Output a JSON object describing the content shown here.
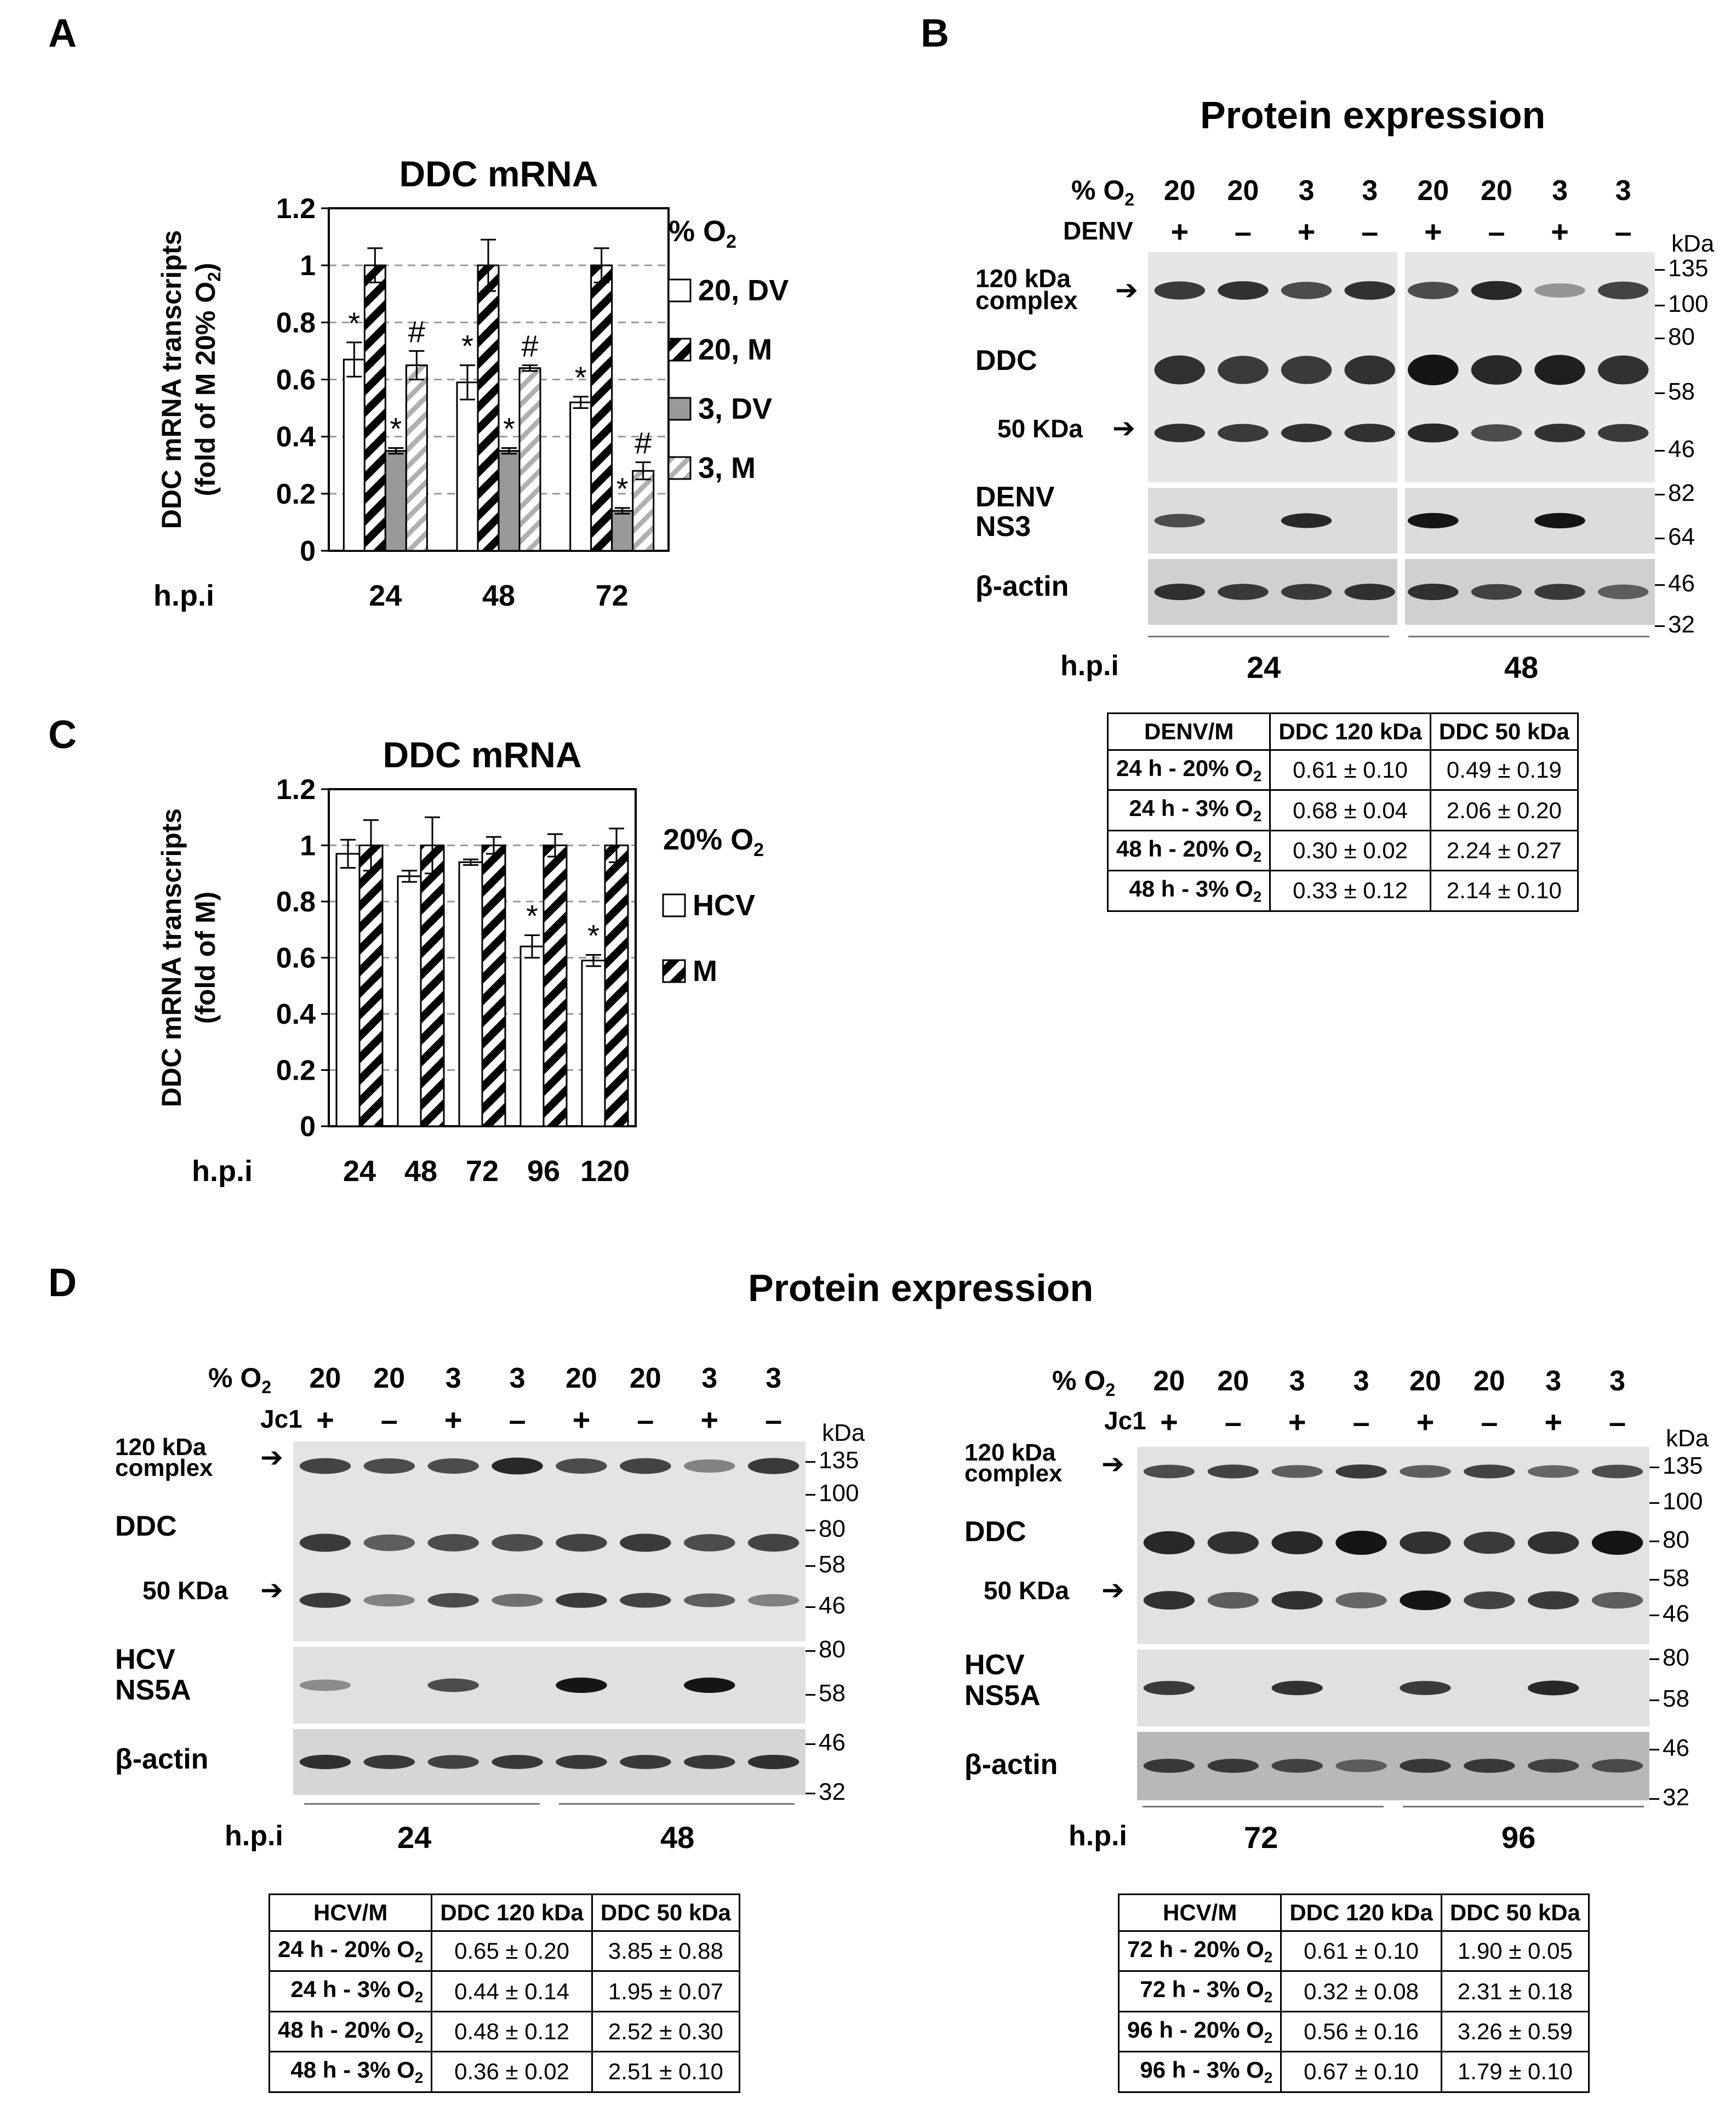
{
  "panels": {
    "a": "A",
    "b": "B",
    "c": "C",
    "d": "D"
  },
  "panelA": {
    "title": "DDC mRNA",
    "ylabel1": "DDC mRNA transcripts",
    "ylabel2": "(fold of M 20% O",
    "ylabel2sub": "2",
    "ylabel2end": ")",
    "legend_title": "% O",
    "legend_title_sub": "2",
    "legend": [
      "20, DV",
      "20, M",
      "3, DV",
      "3, M"
    ],
    "xaxis_label": "h.p.i"
  },
  "panelC": {
    "title": "DDC mRNA",
    "ylabel1": "DDC mRNA transcripts",
    "ylabel2": "(fold of M)",
    "legend_title": "20% O",
    "legend_title_sub": "2",
    "legend": [
      "HCV",
      "M"
    ],
    "xaxis_label": "h.p.i"
  },
  "chart_data": [
    {
      "type": "bar",
      "title": "DDC mRNA",
      "ylabel": "DDC mRNA transcripts (fold of M 20% O2)",
      "xlabel": "h.p.i",
      "categories": [
        "24",
        "48",
        "72"
      ],
      "ylim": [
        0,
        1.2
      ],
      "yticks": [
        "0",
        "0.2",
        "0.4",
        "0.6",
        "0.8",
        "1",
        "1.2"
      ],
      "grid": "dashed horizontal",
      "series": [
        {
          "name": "20, DV",
          "values": [
            0.67,
            0.59,
            0.52
          ],
          "errors": [
            0.06,
            0.06,
            0.02
          ],
          "marks": [
            "*",
            "*",
            "*"
          ]
        },
        {
          "name": "20, M",
          "values": [
            1.0,
            1.0,
            1.0
          ],
          "errors": [
            0.06,
            0.09,
            0.06
          ],
          "marks": [
            "",
            "",
            ""
          ]
        },
        {
          "name": "3, DV",
          "values": [
            0.35,
            0.35,
            0.14
          ],
          "errors": [
            0.01,
            0.01,
            0.01
          ],
          "marks": [
            "*",
            "*",
            "*"
          ]
        },
        {
          "name": "3, M",
          "values": [
            0.65,
            0.64,
            0.28
          ],
          "errors": [
            0.05,
            0.01,
            0.03
          ],
          "marks": [
            "#",
            "#",
            "#"
          ]
        }
      ],
      "legend_placement": "right"
    },
    {
      "type": "bar",
      "title": "DDC mRNA",
      "ylabel": "DDC mRNA transcripts (fold of M)",
      "xlabel": "h.p.i",
      "categories": [
        "24",
        "48",
        "72",
        "96",
        "120"
      ],
      "ylim": [
        0,
        1.2
      ],
      "yticks": [
        "0",
        "0.2",
        "0.4",
        "0.6",
        "0.8",
        "1",
        "1.2"
      ],
      "grid": "dashed horizontal",
      "series": [
        {
          "name": "HCV",
          "values": [
            0.97,
            0.89,
            0.94,
            0.64,
            0.59
          ],
          "errors": [
            0.05,
            0.02,
            0.01,
            0.04,
            0.02
          ],
          "marks": [
            "",
            "",
            "",
            "*",
            "*"
          ]
        },
        {
          "name": "M",
          "values": [
            1.0,
            1.0,
            1.0,
            1.0,
            1.0
          ],
          "errors": [
            0.09,
            0.1,
            0.03,
            0.04,
            0.06
          ],
          "marks": [
            "",
            "",
            "",
            "",
            ""
          ]
        }
      ],
      "legend_placement": "right"
    }
  ],
  "panelB": {
    "title": "Protein expression",
    "o2_label": "% O",
    "o2_sub": "2",
    "o2_values": [
      "20",
      "20",
      "3",
      "3",
      "20",
      "20",
      "3",
      "3"
    ],
    "virus_label": "DENV",
    "virus_signs": [
      "+",
      "–",
      "+",
      "–",
      "+",
      "–",
      "+",
      "–"
    ],
    "kda": "kDa",
    "complex_label1": "120 kDa",
    "complex_label2": "complex",
    "ddc_label": "DDC",
    "kda50_label": "50 KDa",
    "ns_label1": "DENV",
    "ns_label2": "NS3",
    "actin_label": "β-actin",
    "mw_top": [
      "135",
      "100",
      "80",
      "58",
      "46"
    ],
    "mw_mid": [
      "82",
      "64"
    ],
    "mw_bot": [
      "46",
      "32"
    ],
    "hpi_label": "h.p.i",
    "times": [
      "24",
      "48"
    ],
    "table": {
      "headers": [
        "DENV/M",
        "DDC 120 kDa",
        "DDC 50 kDa"
      ],
      "rows": [
        {
          "label": "24 h - 20% O",
          "sub": "2",
          "c1": "0.61 ± 0.10",
          "c2": "0.49 ± 0.19"
        },
        {
          "label": "24 h - 3% O",
          "sub": "2",
          "c1": "0.68 ± 0.04",
          "c2": "2.06 ± 0.20"
        },
        {
          "label": "48 h - 20% O",
          "sub": "2",
          "c1": "0.30 ± 0.02",
          "c2": "2.24 ± 0.27"
        },
        {
          "label": "48 h - 3% O",
          "sub": "2",
          "c1": "0.33 ± 0.12",
          "c2": "2.14 ± 0.10"
        }
      ]
    }
  },
  "panelD": {
    "title": "Protein expression",
    "o2_label": "% O",
    "o2_sub": "2",
    "o2_values": [
      "20",
      "20",
      "3",
      "3",
      "20",
      "20",
      "3",
      "3"
    ],
    "virus_label": "Jc1",
    "virus_signs": [
      "+",
      "–",
      "+",
      "–",
      "+",
      "–",
      "+",
      "–"
    ],
    "kda": "kDa",
    "complex_label1": "120 kDa",
    "complex_label2": "complex",
    "ddc_label": "DDC",
    "kda50_label": "50 KDa",
    "ns_label1": "HCV",
    "ns_label2": "NS5A",
    "actin_label": "β-actin",
    "mw_top": [
      "135",
      "100",
      "80",
      "58",
      "46"
    ],
    "mw_mid": [
      "80",
      "58"
    ],
    "mw_bot": [
      "46",
      "32"
    ],
    "hpi_label": "h.p.i",
    "left_times": [
      "24",
      "48"
    ],
    "right_times": [
      "72",
      "96"
    ],
    "left_table": {
      "headers": [
        "HCV/M",
        "DDC 120 kDa",
        "DDC 50 kDa"
      ],
      "rows": [
        {
          "label": "24 h - 20% O",
          "sub": "2",
          "c1": "0.65 ± 0.20",
          "c2": "3.85 ± 0.88"
        },
        {
          "label": "24 h - 3% O",
          "sub": "2",
          "c1": "0.44 ± 0.14",
          "c2": "1.95 ± 0.07"
        },
        {
          "label": "48 h - 20% O",
          "sub": "2",
          "c1": "0.48 ± 0.12",
          "c2": "2.52 ± 0.30"
        },
        {
          "label": "48 h - 3% O",
          "sub": "2",
          "c1": "0.36 ± 0.02",
          "c2": "2.51 ± 0.10"
        }
      ]
    },
    "right_table": {
      "headers": [
        "HCV/M",
        "DDC 120 kDa",
        "DDC 50 kDa"
      ],
      "rows": [
        {
          "label": "72 h - 20% O",
          "sub": "2",
          "c1": "0.61 ± 0.10",
          "c2": "1.90 ± 0.05"
        },
        {
          "label": "72 h - 3% O",
          "sub": "2",
          "c1": "0.32 ± 0.08",
          "c2": "2.31 ± 0.18"
        },
        {
          "label": "96 h - 20% O",
          "sub": "2",
          "c1": "0.56 ± 0.16",
          "c2": "3.26 ± 0.59"
        },
        {
          "label": "96 h - 3% O",
          "sub": "2",
          "c1": "0.67 ± 0.10",
          "c2": "1.79 ± 0.10"
        }
      ]
    }
  }
}
